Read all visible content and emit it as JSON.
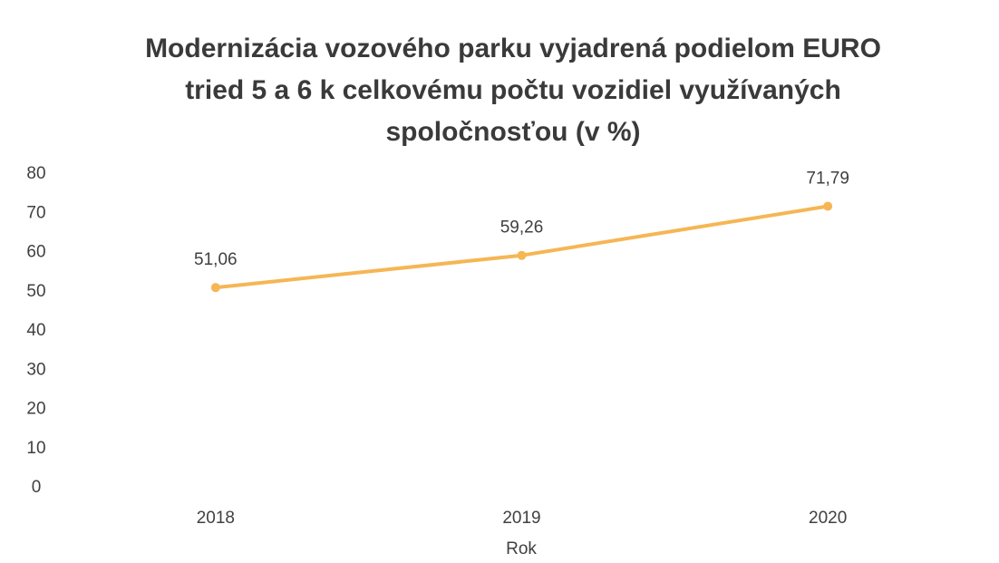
{
  "chart_data": {
    "type": "line",
    "title": [
      "Modernizácia vozového parku vyjadrená podielom EURO",
      "tried 5 a 6 k celkovému počtu vozidiel využívaných",
      "spoločnosťou (v %)"
    ],
    "xlabel": "Rok",
    "categories": [
      "2018",
      "2019",
      "2020"
    ],
    "values": [
      51.06,
      59.26,
      71.79
    ],
    "value_labels": [
      "51,06",
      "59,26",
      "71,79"
    ],
    "color": "#f5b654",
    "ylim": [
      0,
      80
    ],
    "yticks": [
      0,
      10,
      20,
      30,
      40,
      50,
      60,
      70,
      80
    ],
    "grid": false
  }
}
